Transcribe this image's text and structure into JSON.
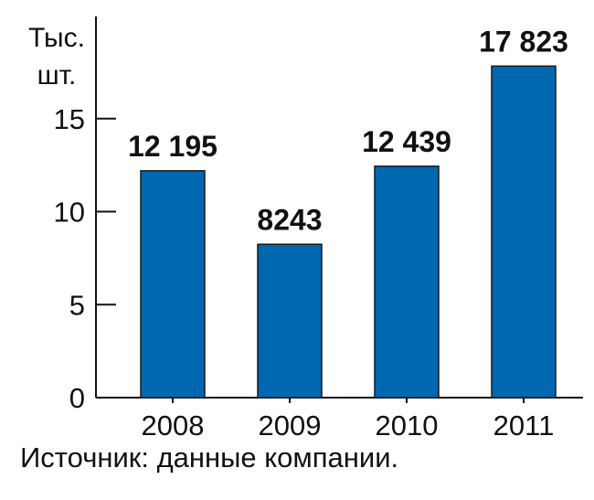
{
  "chart_data": {
    "type": "bar",
    "title": "",
    "ylabel_line1": "Тыс.",
    "ylabel_line2": "шт.",
    "xlabel": "",
    "categories": [
      "2008",
      "2009",
      "2010",
      "2011"
    ],
    "values": [
      12.195,
      8.243,
      12.439,
      17.823
    ],
    "data_labels": [
      "12 195",
      "8243",
      "12 439",
      "17 823"
    ],
    "yticks": [
      "0",
      "5",
      "10",
      "15"
    ],
    "ylim": [
      0,
      20
    ],
    "grid": false,
    "bar_color": "#0067b1",
    "bar_edge_color": "#1a1a1a"
  },
  "source_note": "Источник: данные компании."
}
